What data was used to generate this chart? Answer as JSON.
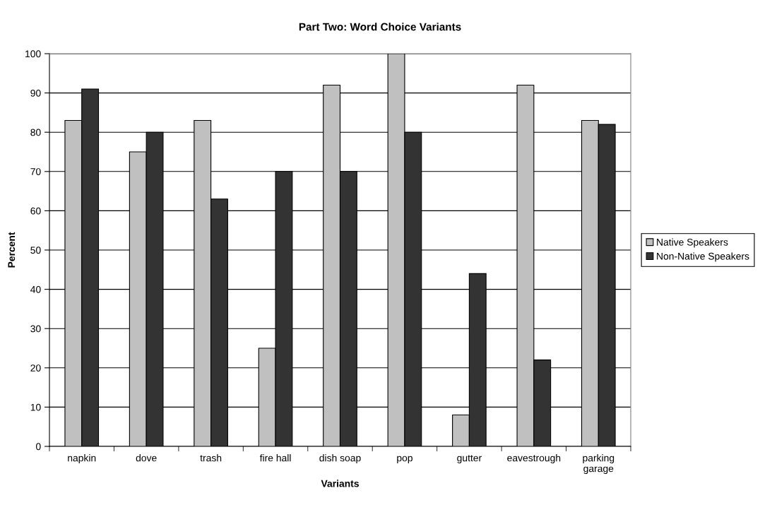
{
  "chart_data": {
    "type": "bar",
    "title": "Part Two: Word Choice Variants",
    "xlabel": "Variants",
    "ylabel": "Percent",
    "categories": [
      "napkin",
      "dove",
      "trash",
      "fire hall",
      "dish soap",
      "pop",
      "gutter",
      "eavestrough",
      "parking\ngarage"
    ],
    "series": [
      {
        "name": "Native Speakers",
        "color": "#c0c0c0",
        "values": [
          83,
          75,
          83,
          25,
          92,
          100,
          8,
          92,
          83
        ]
      },
      {
        "name": "Non-Native Speakers",
        "color": "#333333",
        "values": [
          91,
          80,
          63,
          70,
          70,
          80,
          44,
          22,
          82
        ]
      }
    ],
    "ylim": [
      0,
      100
    ],
    "yticks": [
      0,
      10,
      20,
      30,
      40,
      50,
      60,
      70,
      80,
      90,
      100
    ],
    "grid": "y",
    "legend": "right"
  }
}
